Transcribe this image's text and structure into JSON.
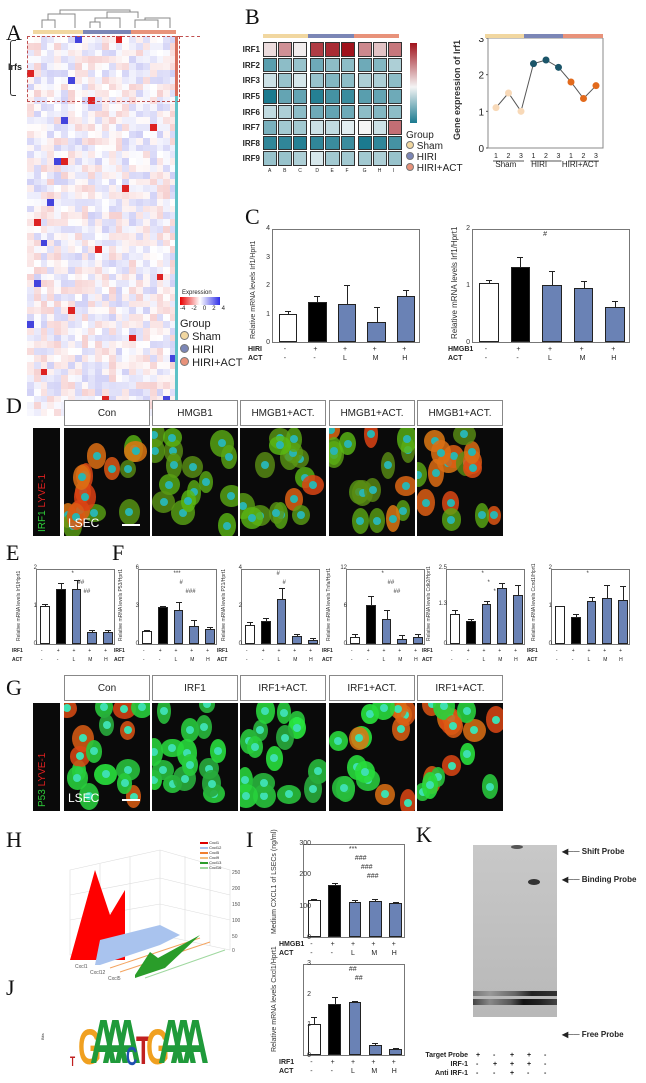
{
  "panels": {
    "A": {
      "label": "A",
      "row_group_label": "Irfs",
      "legend_title": "Expression",
      "legend_ticks": [
        "-4",
        "-2",
        "0",
        "2",
        "4"
      ],
      "group_title": "Group",
      "groups": [
        {
          "name": "Sham",
          "color": "#f1d7a0"
        },
        {
          "name": "HIRI",
          "color": "#7b86b6"
        },
        {
          "name": "HIRI+ACT",
          "color": "#e8927a"
        }
      ]
    },
    "B": {
      "label": "B",
      "rows": [
        "IRF1",
        "IRF2",
        "IRF3",
        "IRF5",
        "IRF6",
        "IRF7",
        "IRF8",
        "IRF9"
      ],
      "cols": [
        "A",
        "B",
        "C",
        "D",
        "E",
        "F",
        "G",
        "H",
        "I"
      ],
      "group_title": "Group",
      "groups": [
        "Sham",
        "HIRI",
        "HIRI+ACT"
      ]
    },
    "B_line": {
      "ylabel": "Gene expression of Irf1",
      "yticks": [
        "0",
        "1",
        "2",
        "3"
      ],
      "xticks": [
        "1",
        "2",
        "3",
        "1",
        "2",
        "3",
        "1",
        "2",
        "3"
      ],
      "groups": [
        "Sham",
        "HIRI",
        "HIRI+ACT"
      ]
    },
    "C": {
      "label": "C"
    },
    "D": {
      "label": "D",
      "headers": [
        "Con",
        "HMGB1",
        "HMGB1+ACT.",
        "HMGB1+ACT.",
        "HMGB1+ACT."
      ],
      "stain_label_green": "IRF1",
      "stain_label_red": "LYVE-1",
      "cell_label": "LSEC"
    },
    "E": {
      "label": "E"
    },
    "F": {
      "label": "F"
    },
    "G": {
      "label": "G",
      "headers": [
        "Con",
        "IRF1",
        "IRF1+ACT.",
        "IRF1+ACT.",
        "IRF1+ACT."
      ],
      "stain_label_green": "P53",
      "stain_label_red": "LYVE-1",
      "cell_label": "LSEC"
    },
    "H": {
      "label": "H",
      "legend": [
        "Cxcl1",
        "Cxcl12",
        "Cxcl5",
        "Cxcl9",
        "Cxcl13",
        "Cxcl16"
      ],
      "xticks": [
        "Cxcl1",
        "Cxcl12",
        "Cxcl5",
        "Cxcl9",
        "Cxcl13",
        "Cxcl16"
      ],
      "zticks": [
        "0",
        "50",
        "100",
        "150",
        "200",
        "250"
      ]
    },
    "I": {
      "label": "I"
    },
    "J": {
      "label": "J",
      "motif": [
        "T",
        "G",
        "A",
        "A",
        "A",
        "C",
        "T",
        "G",
        "A",
        "A",
        "A"
      ],
      "ylabel": "Bits"
    },
    "K": {
      "label": "K",
      "arrows": [
        "Shift Probe",
        "Binding Probe",
        "Free Probe"
      ],
      "rows": [
        {
          "name": "Target Probe",
          "vals": [
            "+",
            "-",
            "+",
            "+",
            "-"
          ]
        },
        {
          "name": "IRF-1",
          "vals": [
            "-",
            "+",
            "+",
            "+",
            "-"
          ]
        },
        {
          "name": "Anti IRF-1",
          "vals": [
            "-",
            "-",
            "+",
            "-",
            "-"
          ]
        }
      ]
    }
  },
  "chart_data": [
    {
      "id": "B_heatmap",
      "type": "heatmap",
      "rows": [
        "IRF1",
        "IRF2",
        "IRF3",
        "IRF5",
        "IRF6",
        "IRF7",
        "IRF8",
        "IRF9"
      ],
      "cols": [
        "A",
        "B",
        "C",
        "D",
        "E",
        "F",
        "G",
        "H",
        "I"
      ],
      "values": [
        [
          0.3,
          1.2,
          0.1,
          2.2,
          2.4,
          2.7,
          1.3,
          0.6,
          1.5
        ],
        [
          -1.4,
          -0.9,
          -0.8,
          -1.2,
          -0.9,
          -0.9,
          -1.2,
          -1.0,
          -0.6
        ],
        [
          -0.3,
          -0.8,
          -0.2,
          -0.8,
          -1.0,
          -0.9,
          -0.6,
          -0.6,
          -0.9
        ],
        [
          -2.0,
          -1.3,
          -1.3,
          -1.9,
          -1.6,
          -1.7,
          -1.4,
          -1.3,
          -1.2
        ],
        [
          -0.4,
          -0.6,
          -0.9,
          -1.2,
          -1.3,
          -1.2,
          -0.9,
          -1.0,
          -0.9
        ],
        [
          -1.1,
          -0.7,
          -0.7,
          -0.3,
          -0.4,
          -0.1,
          0.0,
          -0.3,
          1.6
        ],
        [
          -1.8,
          -1.8,
          -1.9,
          -1.8,
          -1.7,
          -1.7,
          -2.0,
          -1.8,
          -1.6
        ],
        [
          -0.8,
          -0.8,
          -0.6,
          -0.2,
          -0.7,
          -0.7,
          -0.7,
          -0.6,
          -0.8
        ]
      ]
    },
    {
      "id": "B_line",
      "type": "line",
      "title": "",
      "ylabel": "Gene expression of Irf1",
      "x": [
        "Sham1",
        "Sham2",
        "Sham3",
        "HIRI1",
        "HIRI2",
        "HIRI3",
        "HIRI+ACT1",
        "HIRI+ACT2",
        "HIRI+ACT3"
      ],
      "values": [
        1.1,
        1.5,
        1.0,
        2.3,
        2.4,
        2.2,
        1.8,
        1.35,
        1.7
      ],
      "ylim": [
        0,
        3
      ]
    },
    {
      "id": "C_left",
      "type": "bar",
      "ylabel": "Relative mRNA levels Irf1/Hprt1",
      "categories": [
        "-/-",
        "+/-",
        "+/L",
        "+/M",
        "+/H"
      ],
      "rows": {
        "HIRI": [
          "-",
          "+",
          "+",
          "+",
          "+"
        ],
        "ACT": [
          "-",
          "-",
          "L",
          "M",
          "H"
        ]
      },
      "values": [
        1.0,
        1.42,
        1.35,
        0.7,
        1.62
      ],
      "errors": [
        0.05,
        0.15,
        0.6,
        0.5,
        0.18
      ],
      "ylim": [
        0,
        4
      ],
      "yticks": [
        "0",
        "1",
        "2",
        "3",
        "4"
      ]
    },
    {
      "id": "C_right",
      "type": "bar",
      "ylabel": "Relative mRNA levels Irf1/Hprt1",
      "categories": [
        "-/-",
        "+/-",
        "+/L",
        "+/M",
        "+/H"
      ],
      "rows": {
        "HMGB1": [
          "-",
          "+",
          "+",
          "+",
          "+"
        ],
        "ACT": [
          "-",
          "-",
          "L",
          "M",
          "H"
        ]
      },
      "values": [
        1.04,
        1.31,
        1.0,
        0.94,
        0.62
      ],
      "errors": [
        0.03,
        0.17,
        0.22,
        0.12,
        0.08
      ],
      "ylim": [
        0,
        2
      ],
      "yticks": [
        "0",
        "1",
        "2"
      ],
      "annotations": [
        "#"
      ]
    },
    {
      "id": "E",
      "type": "bar",
      "ylabel": "Relative mRNA levels Irf1/Hprt1",
      "rows": {
        "IRF1": [
          "-",
          "+",
          "+",
          "+",
          "+"
        ],
        "ACT": [
          "-",
          "-",
          "L",
          "M",
          "H"
        ]
      },
      "values": [
        1.0,
        1.45,
        1.45,
        0.32,
        0.32
      ],
      "errors": [
        0.03,
        0.12,
        0.2,
        0.02,
        0.03
      ],
      "ylim": [
        0,
        2
      ],
      "annotations": [
        "*",
        "##",
        "##"
      ]
    },
    {
      "id": "F1",
      "type": "bar",
      "ylabel": "Relative mRNA levels P53/Hprt1",
      "rows": {
        "IRF1": [
          "-",
          "+",
          "+",
          "+",
          "+"
        ],
        "ACT": [
          "-",
          "-",
          "L",
          "M",
          "H"
        ]
      },
      "values": [
        1.0,
        2.9,
        2.7,
        1.45,
        1.2
      ],
      "errors": [
        0.05,
        0.05,
        0.5,
        0.35,
        0.05
      ],
      "ylim": [
        0,
        6
      ],
      "annotations": [
        "***",
        "#",
        "###"
      ]
    },
    {
      "id": "F2",
      "type": "bar",
      "ylabel": "Relative mRNA levels P21/Hprt1",
      "rows": {
        "IRF1": [
          "-",
          "+",
          "+",
          "+",
          "+"
        ],
        "ACT": [
          "-",
          "-",
          "L",
          "M",
          "H"
        ]
      },
      "values": [
        1.0,
        1.2,
        2.35,
        0.42,
        0.22
      ],
      "errors": [
        0.1,
        0.12,
        0.55,
        0.03,
        0.04
      ],
      "ylim": [
        0,
        4
      ],
      "annotations": [
        "#",
        "#"
      ]
    },
    {
      "id": "F3",
      "type": "bar",
      "ylabel": "Relative mRNA levels Tnfa/Hprt1",
      "rows": {
        "IRF1": [
          "-",
          "+",
          "+",
          "+",
          "+"
        ],
        "ACT": [
          "-",
          "-",
          "L",
          "M",
          "H"
        ]
      },
      "values": [
        1.1,
        6.1,
        4.0,
        0.8,
        1.1
      ],
      "errors": [
        0.3,
        1.4,
        1.2,
        0.5,
        0.4
      ],
      "ylim": [
        0,
        12
      ],
      "annotations": [
        "*",
        "##",
        "##"
      ]
    },
    {
      "id": "F4",
      "type": "bar",
      "ylabel": "Relative mRNA levels Cdk2/Hprt1",
      "rows": {
        "IRF1": [
          "-",
          "+",
          "+",
          "+",
          "+"
        ],
        "ACT": [
          "-",
          "-",
          "L",
          "M",
          "H"
        ]
      },
      "values": [
        1.0,
        0.75,
        1.3,
        1.85,
        1.6
      ],
      "errors": [
        0.1,
        0.04,
        0.07,
        0.12,
        0.32
      ],
      "ylim": [
        0,
        2.5
      ],
      "annotations": [
        "*",
        "*",
        "*"
      ]
    },
    {
      "id": "F5",
      "type": "bar",
      "ylabel": "Relative mRNA levels Ccnd1/Hprt1",
      "rows": {
        "IRF1": [
          "-",
          "+",
          "+",
          "+",
          "+"
        ],
        "ACT": [
          "-",
          "-",
          "L",
          "M",
          "H"
        ]
      },
      "values": [
        1.0,
        0.72,
        1.12,
        1.22,
        1.15
      ],
      "errors": [
        0.0,
        0.05,
        0.08,
        0.3,
        0.35
      ],
      "ylim": [
        0,
        2.0
      ],
      "annotations": [
        "*"
      ]
    },
    {
      "id": "I_top",
      "type": "bar",
      "ylabel": "Medium CXCL1 of LSECs (ng/ml)",
      "rows": {
        "HMGB1": [
          "-",
          "+",
          "+",
          "+",
          "+"
        ],
        "ACT": [
          "-",
          "-",
          "L",
          "M",
          "H"
        ]
      },
      "values": [
        117,
        165,
        113,
        116,
        109
      ],
      "errors": [
        2,
        4,
        1,
        2,
        1
      ],
      "ylim": [
        0,
        300
      ],
      "yticks": [
        "0",
        "100",
        "200",
        "300"
      ],
      "annotations": [
        "***",
        "###",
        "###",
        "###"
      ]
    },
    {
      "id": "I_bottom",
      "type": "bar",
      "ylabel": "Relative mRNA levels Cxcl1/Hprt1",
      "rows": {
        "IRF1": [
          "-",
          "+",
          "+",
          "+",
          "+"
        ],
        "ACT": [
          "-",
          "-",
          "L",
          "M",
          "H"
        ]
      },
      "values": [
        1.0,
        1.66,
        1.72,
        0.33,
        0.18
      ],
      "errors": [
        0.2,
        0.2,
        0.02,
        0.03,
        0.01
      ],
      "ylim": [
        0,
        3
      ],
      "yticks": [
        "0",
        "1",
        "2",
        "3"
      ],
      "annotations": [
        "##",
        "##"
      ]
    }
  ]
}
